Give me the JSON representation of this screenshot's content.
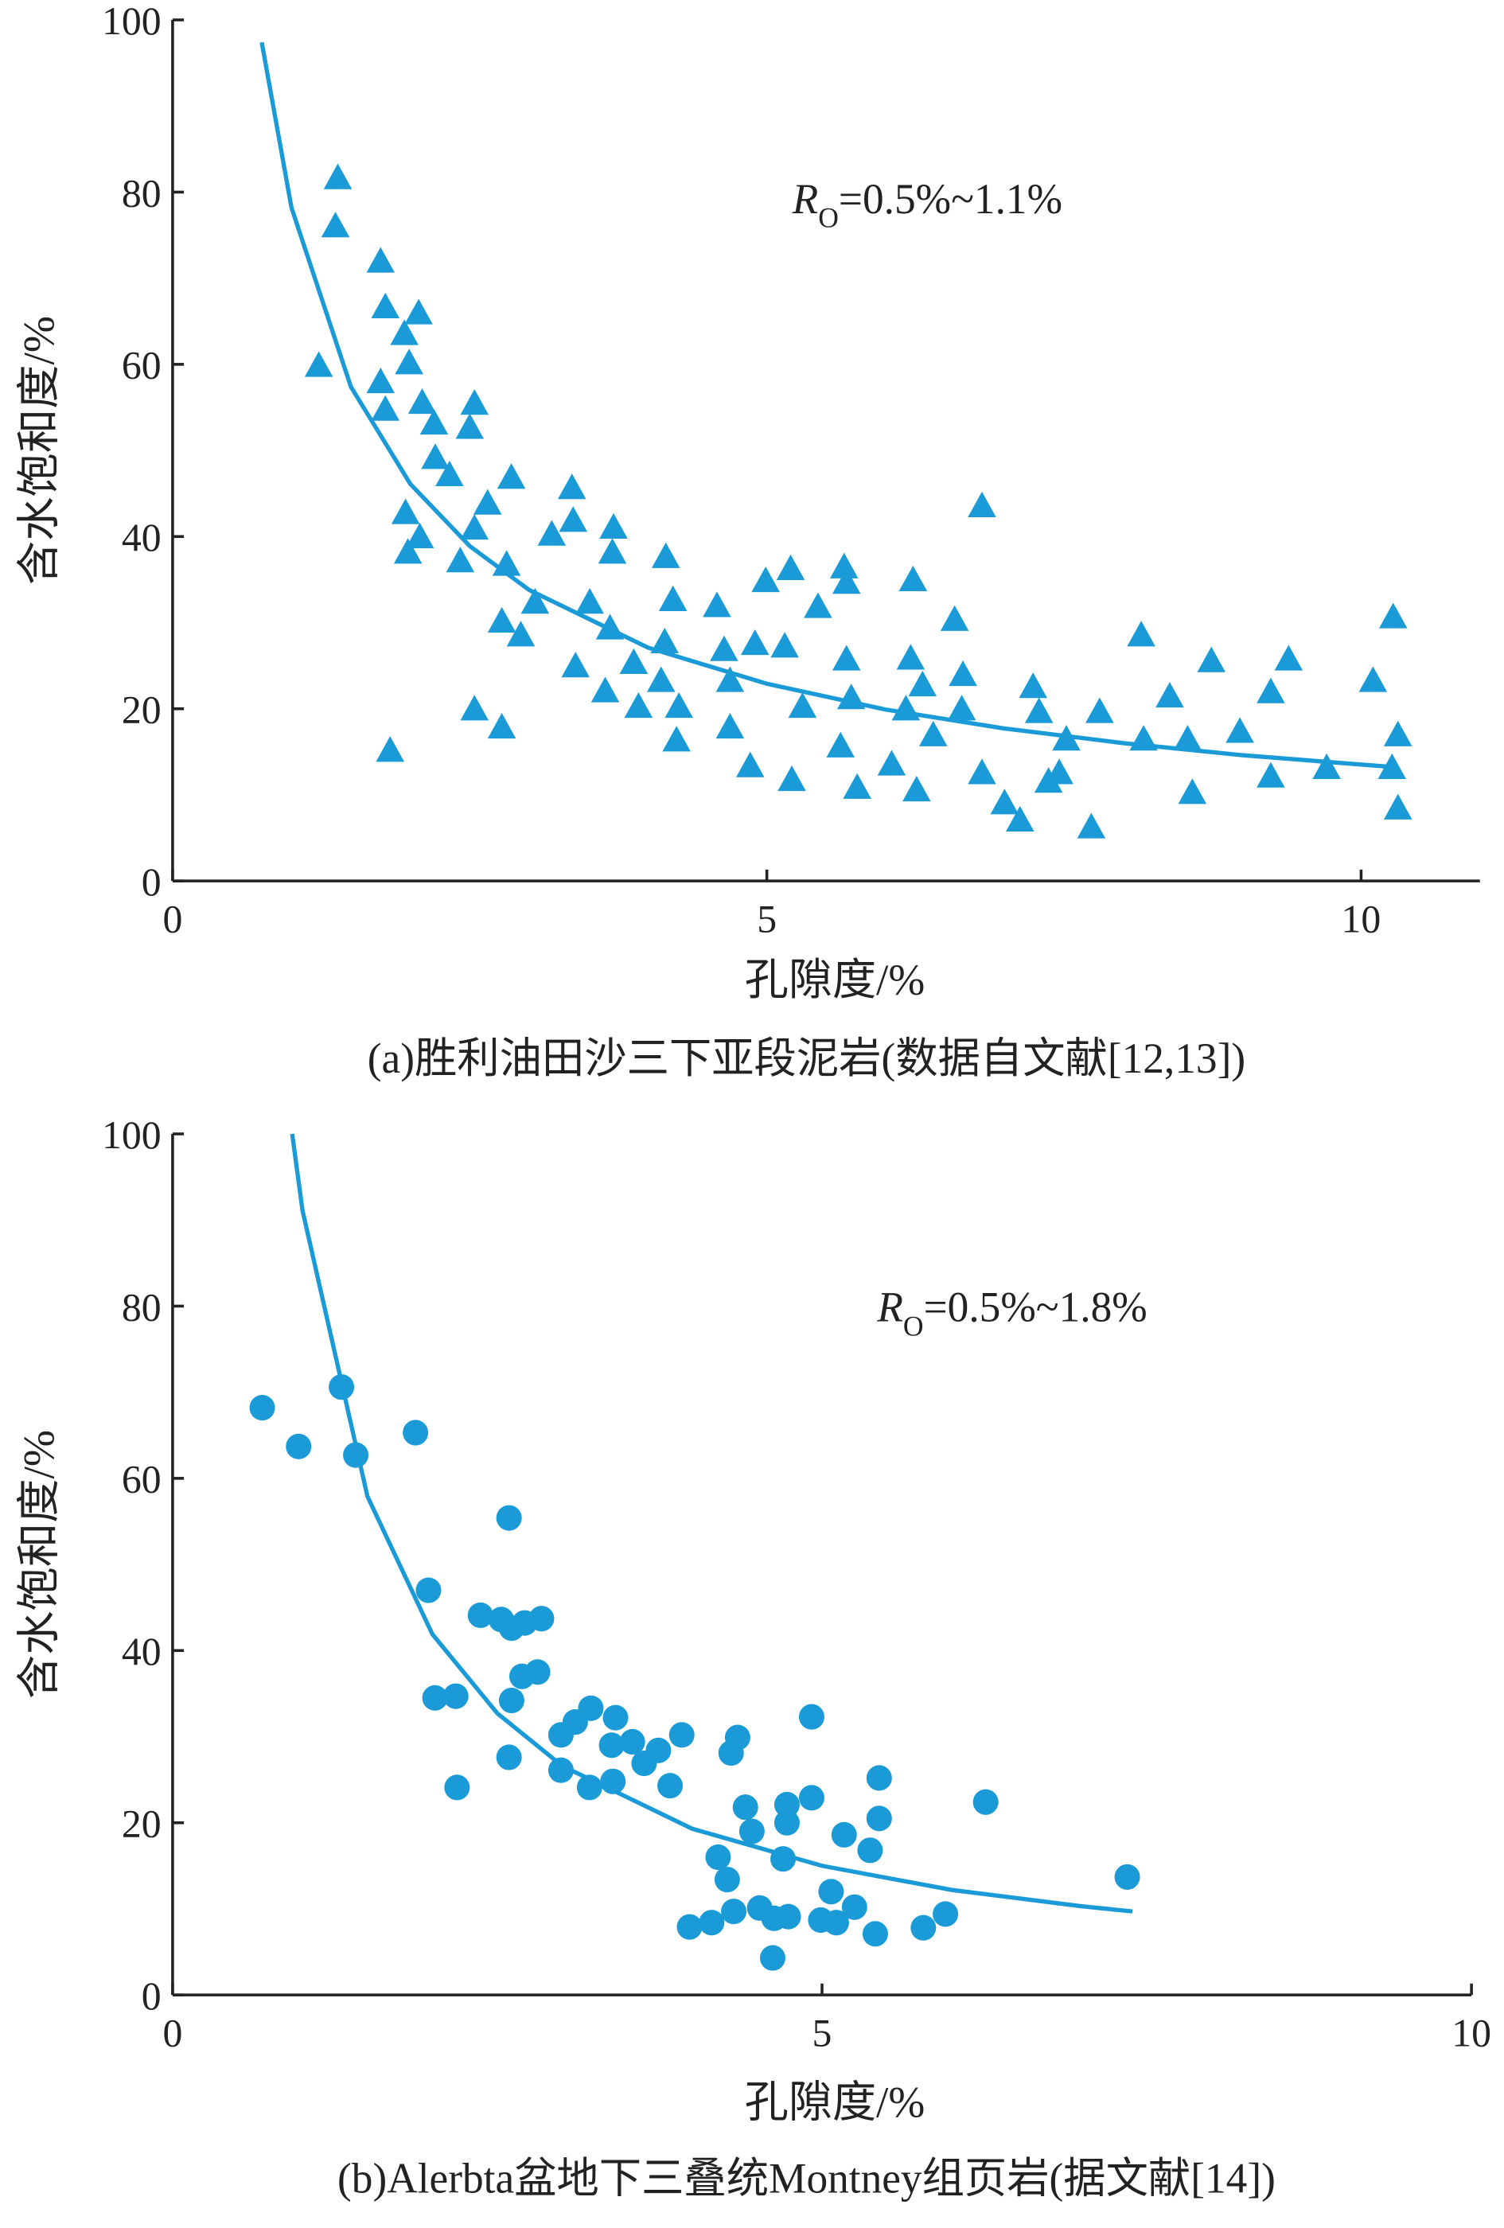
{
  "chart_data": [
    {
      "type": "scatter",
      "xlabel": "孔隙度/%",
      "ylabel": "含水饱和度/%",
      "caption": "(a)胜利油田沙三下亚段泥岩(数据自文献[12,13])",
      "annotation": {
        "symbol": "R",
        "subscript": "O",
        "text": "=0.5%~1.1%"
      },
      "xlim": [
        0,
        11
      ],
      "ylim": [
        0,
        100
      ],
      "xticks": [
        0,
        5,
        10
      ],
      "yticks": [
        0,
        20,
        40,
        60,
        80,
        100
      ],
      "color": "#1a9ad6",
      "marker": "triangle",
      "x": [
        1.23,
        1.39,
        1.37,
        1.75,
        1.79,
        1.75,
        1.79,
        1.95,
        2.07,
        1.99,
        2.1,
        2.2,
        2.21,
        2.33,
        2.54,
        2.5,
        2.65,
        2.85,
        1.96,
        2.08,
        1.98,
        2.54,
        2.42,
        2.81,
        1.83,
        2.54,
        2.77,
        2.77,
        2.93,
        3.05,
        3.19,
        3.36,
        3.37,
        3.51,
        3.39,
        3.68,
        3.71,
        3.7,
        3.64,
        3.88,
        3.92,
        4.15,
        4.14,
        4.21,
        4.11,
        4.26,
        4.24,
        4.58,
        4.64,
        4.69,
        4.69,
        4.86,
        4.9,
        4.99,
        5.2,
        5.15,
        5.3,
        5.21,
        5.43,
        5.65,
        5.67,
        5.67,
        5.71,
        5.62,
        5.76,
        6.05,
        6.23,
        6.21,
        6.31,
        6.17,
        6.26,
        6.4,
        6.58,
        6.65,
        6.64,
        6.81,
        6.81,
        7.0,
        7.13,
        7.24,
        7.29,
        7.37,
        7.46,
        7.52,
        7.73,
        7.8,
        8.15,
        8.17,
        8.39,
        8.54,
        8.58,
        8.74,
        8.98,
        9.24,
        9.24,
        9.39,
        9.71,
        10.1,
        10.27,
        10.26,
        10.31,
        10.31
      ],
      "values": [
        59.7,
        81.5,
        75.9,
        71.8,
        66.5,
        57.8,
        54.6,
        63.4,
        65.8,
        60,
        55.4,
        53,
        49,
        47,
        55.3,
        52.5,
        43.7,
        46.7,
        42.6,
        39.8,
        38,
        40.8,
        37,
        36.6,
        15,
        19.8,
        17.7,
        30,
        28.4,
        32.2,
        40.1,
        45.5,
        41.7,
        32.2,
        24.8,
        29.2,
        40.9,
        38,
        21.9,
        25.2,
        20.1,
        37.5,
        27.6,
        32.5,
        23.1,
        20.1,
        16.2,
        31.8,
        26.7,
        23.1,
        17.7,
        13.2,
        27.4,
        34.7,
        36.1,
        27.1,
        20.1,
        11.6,
        31.7,
        36.3,
        34.5,
        25.6,
        21.1,
        15.5,
        10.7,
        13.4,
        34.8,
        25.7,
        22.6,
        19.8,
        10.4,
        16.8,
        30.2,
        23.8,
        19.8,
        43.4,
        12.4,
        8.9,
        6.9,
        22.4,
        19.5,
        11.4,
        12.4,
        16.3,
        6.1,
        19.5,
        28.4,
        16.3,
        21.3,
        16.3,
        10.1,
        25.4,
        17.2,
        21.8,
        12,
        25.6,
        13,
        23.1,
        30.5,
        13,
        16.8,
        8.3
      ],
      "fit_x": [
        0.75,
        1,
        1.5,
        2,
        2.5,
        3,
        4,
        5,
        6,
        7,
        8,
        9,
        10.3
      ],
      "fit_values": [
        97.4,
        78.2,
        57.4,
        46.1,
        38.9,
        33.8,
        27.1,
        22.9,
        19.9,
        17.7,
        16.0,
        14.6,
        13.2
      ]
    },
    {
      "type": "scatter",
      "xlabel": "孔隙度/%",
      "ylabel": "含水饱和度/%",
      "caption": "(b)Alerbta盆地下三叠统Montney组页岩(据文献[14])",
      "annotation": {
        "symbol": "R",
        "subscript": "O",
        "text": "=0.5%~1.8%"
      },
      "xlim": [
        0,
        10
      ],
      "ylim": [
        0,
        100
      ],
      "xticks": [
        0,
        5,
        10
      ],
      "yticks": [
        0,
        20,
        40,
        60,
        80,
        100
      ],
      "color": "#1a9ad6",
      "marker": "circle",
      "x": [
        0.69,
        0.97,
        1.3,
        1.41,
        1.87,
        1.97,
        2.02,
        2.18,
        2.19,
        2.37,
        2.53,
        2.59,
        2.61,
        2.71,
        2.84,
        2.69,
        2.81,
        2.61,
        2.59,
        2.99,
        2.99,
        3.1,
        3.22,
        3.21,
        3.38,
        3.41,
        3.39,
        3.54,
        3.63,
        3.74,
        3.83,
        3.92,
        3.98,
        4.15,
        4.2,
        4.27,
        4.3,
        4.35,
        4.32,
        4.41,
        4.46,
        4.52,
        4.62,
        4.63,
        4.7,
        4.73,
        4.73,
        4.74,
        4.92,
        4.92,
        4.99,
        5.07,
        5.11,
        5.17,
        5.25,
        5.37,
        5.41,
        5.44,
        5.44,
        5.78,
        5.95,
        6.26,
        7.35
      ],
      "values": [
        68.2,
        63.7,
        70.6,
        62.7,
        65.3,
        47,
        34.5,
        34.7,
        24.1,
        44.1,
        43.6,
        55.4,
        42.6,
        43.2,
        43.7,
        37,
        37.5,
        34.2,
        27.6,
        26.1,
        30.2,
        31.7,
        33.3,
        24.1,
        29,
        32.2,
        24.8,
        29.4,
        26.9,
        28.4,
        24.3,
        30.2,
        7.9,
        8.4,
        16,
        13.4,
        28.1,
        29.9,
        9.7,
        21.8,
        19,
        10.1,
        4.3,
        8.9,
        15.8,
        20,
        22.1,
        9.1,
        32.3,
        22.9,
        8.7,
        12,
        8.4,
        18.6,
        10.2,
        16.8,
        7.1,
        20.5,
        25.2,
        7.8,
        9.4,
        22.4,
        13.7
      ],
      "fit_x": [
        0.92,
        1,
        1.5,
        2,
        2.5,
        3,
        4,
        5,
        6,
        7,
        7.39
      ],
      "fit_values": [
        100,
        91.1,
        57.9,
        41.9,
        32.7,
        26.6,
        19.3,
        15.0,
        12.2,
        10.3,
        9.7
      ]
    }
  ]
}
